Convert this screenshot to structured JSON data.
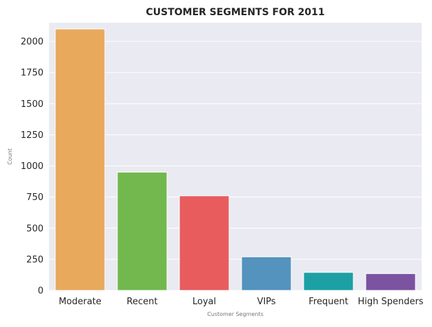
{
  "chart_data": {
    "type": "bar",
    "title": "CUSTOMER SEGMENTS FOR 2011",
    "xlabel": "Customer Segments",
    "ylabel": "Count",
    "categories": [
      "Moderate",
      "Recent",
      "Loyal",
      "VIPs",
      "Frequent",
      "High Spenders"
    ],
    "values": [
      2100,
      950,
      760,
      270,
      145,
      135
    ],
    "colors": [
      "#e8a95c",
      "#72b84f",
      "#e85c5e",
      "#5393bd",
      "#1da0a4",
      "#7b53a0"
    ],
    "ylim": [
      0,
      2150
    ],
    "yticks": [
      0,
      250,
      500,
      750,
      1000,
      1250,
      1500,
      1750,
      2000
    ],
    "grid": true,
    "background": "#eaeaf2",
    "grid_color": "#ffffff"
  }
}
